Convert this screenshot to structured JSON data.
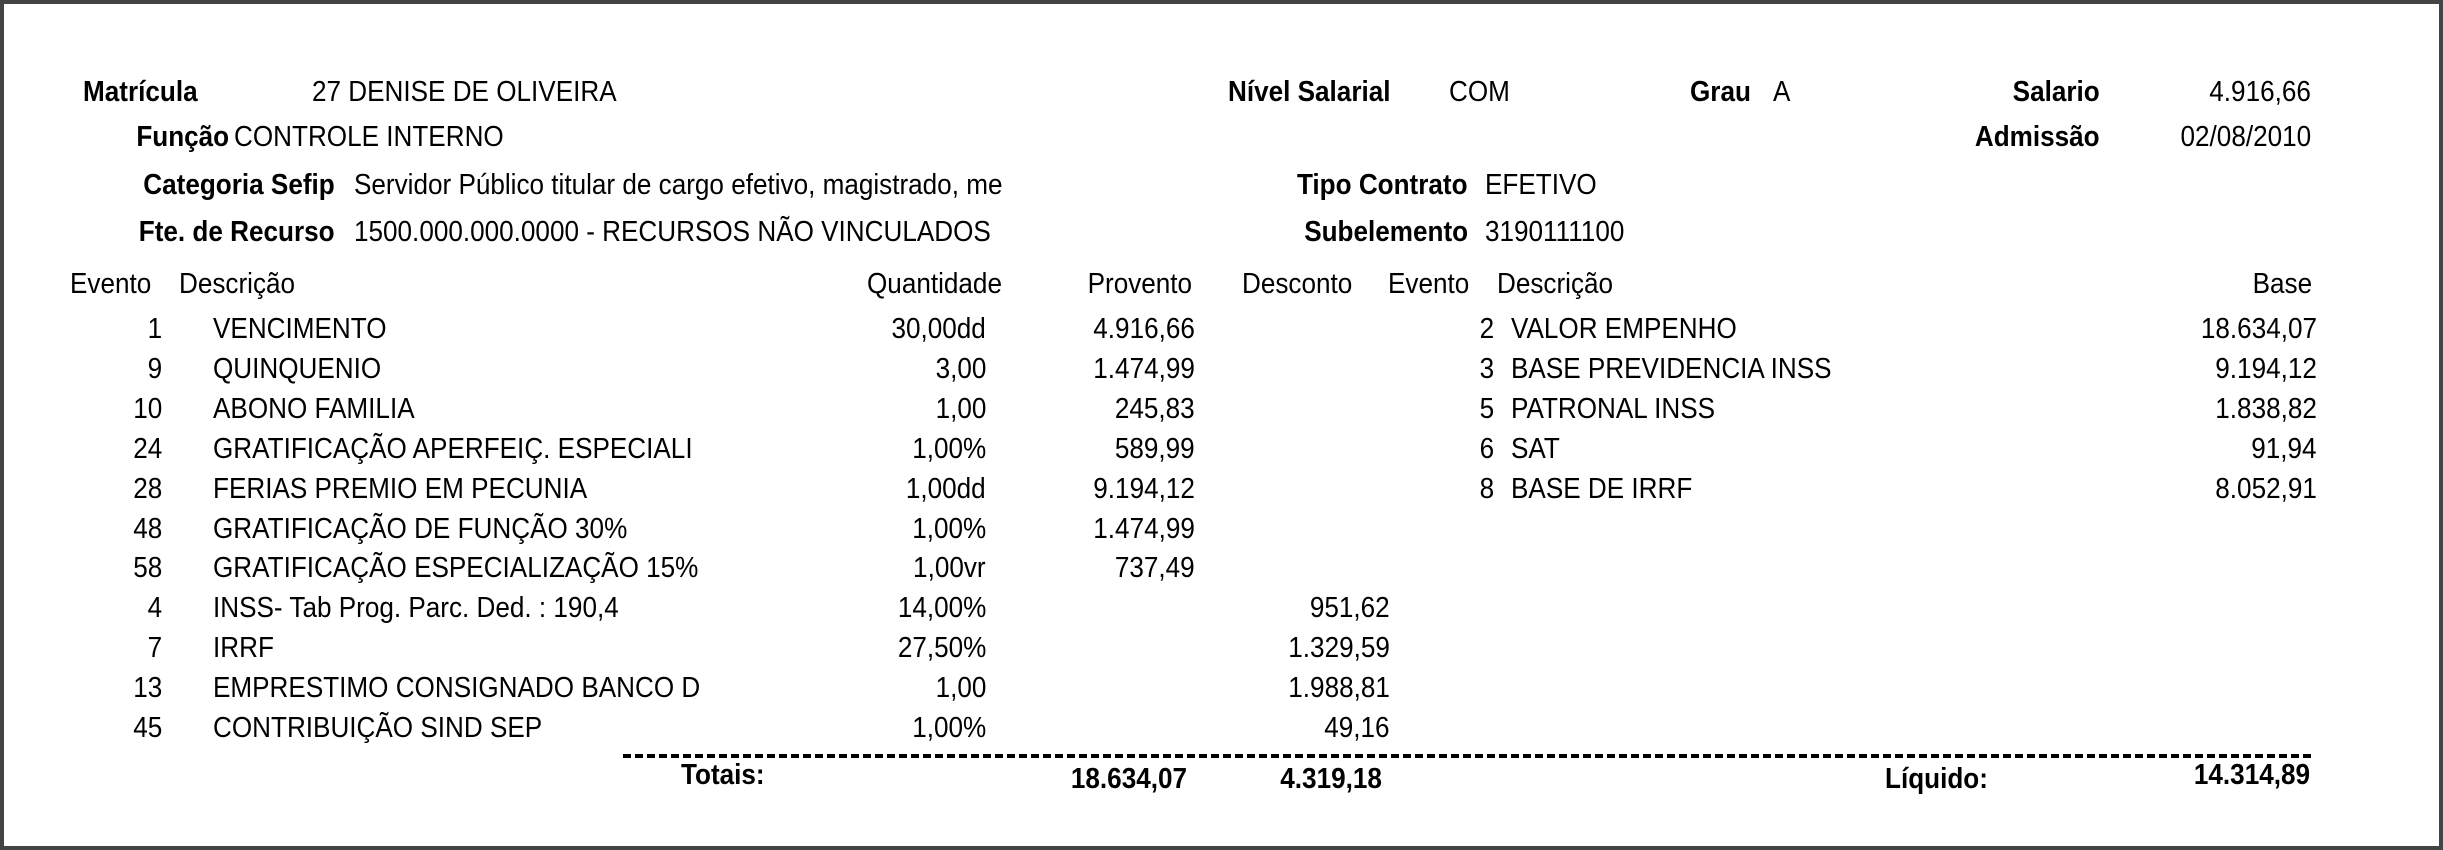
{
  "header": {
    "matricula_label": "Matrícula",
    "matricula_value": "27 DENISE DE OLIVEIRA",
    "funcao_label": "Função",
    "funcao_value": "CONTROLE INTERNO",
    "categoria_label": "Categoria Sefip",
    "categoria_value": "Servidor Público titular de cargo efetivo, magistrado, me",
    "fonte_label": "Fte. de Recurso",
    "fonte_value": "1500.000.000.0000 - RECURSOS NÃO VINCULADOS",
    "nivel_label": "Nível Salarial",
    "nivel_value": "COM",
    "grau_label": "Grau",
    "grau_value": "A",
    "salario_label": "Salario",
    "salario_value": "4.916,66",
    "admissao_label": "Admissão",
    "admissao_value": "02/08/2010",
    "tipo_label": "Tipo Contrato",
    "tipo_value": "EFETIVO",
    "subelemento_label": "Subelemento",
    "subelemento_value": "3190111100"
  },
  "columns": {
    "evento": "Evento",
    "descricao": "Descrição",
    "quantidade": "Quantidade",
    "provento": "Provento",
    "desconto": "Desconto",
    "evento2": "Evento",
    "descricao2": "Descrição",
    "base": "Base"
  },
  "events": [
    {
      "evento": "1",
      "descricao": "VENCIMENTO",
      "quantidade": "30,00dd",
      "provento": "4.916,66",
      "desconto": ""
    },
    {
      "evento": "9",
      "descricao": "QUINQUENIO",
      "quantidade": "3,00",
      "provento": "1.474,99",
      "desconto": ""
    },
    {
      "evento": "10",
      "descricao": "ABONO FAMILIA",
      "quantidade": "1,00",
      "provento": "245,83",
      "desconto": ""
    },
    {
      "evento": "24",
      "descricao": "GRATIFICAÇÃO APERFEIÇ. ESPECIALI",
      "quantidade": "1,00%",
      "provento": "589,99",
      "desconto": ""
    },
    {
      "evento": "28",
      "descricao": "FERIAS PREMIO EM PECUNIA",
      "quantidade": "1,00dd",
      "provento": "9.194,12",
      "desconto": ""
    },
    {
      "evento": "48",
      "descricao": "GRATIFICAÇÃO DE FUNÇÃO 30%",
      "quantidade": "1,00%",
      "provento": "1.474,99",
      "desconto": ""
    },
    {
      "evento": "58",
      "descricao": "GRATIFICAÇÃO ESPECIALIZAÇÃO 15%",
      "quantidade": "1,00vr",
      "provento": "737,49",
      "desconto": ""
    },
    {
      "evento": "4",
      "descricao": "INSS- Tab Prog. Parc. Ded. : 190,4",
      "quantidade": "14,00%",
      "provento": "",
      "desconto": "951,62"
    },
    {
      "evento": "7",
      "descricao": "IRRF",
      "quantidade": "27,50%",
      "provento": "",
      "desconto": "1.329,59"
    },
    {
      "evento": "13",
      "descricao": "EMPRESTIMO CONSIGNADO BANCO D",
      "quantidade": "1,00",
      "provento": "",
      "desconto": "1.988,81"
    },
    {
      "evento": "45",
      "descricao": "CONTRIBUIÇÃO SIND SEP",
      "quantidade": "1,00%",
      "provento": "",
      "desconto": "49,16"
    }
  ],
  "bases": [
    {
      "evento": "2",
      "descricao": "VALOR EMPENHO",
      "base": "18.634,07"
    },
    {
      "evento": "3",
      "descricao": "BASE PREVIDENCIA INSS",
      "base": "9.194,12"
    },
    {
      "evento": "5",
      "descricao": "PATRONAL INSS",
      "base": "1.838,82"
    },
    {
      "evento": "6",
      "descricao": "SAT",
      "base": "91,94"
    },
    {
      "evento": "8",
      "descricao": "BASE DE IRRF",
      "base": "8.052,91"
    }
  ],
  "totals": {
    "label": "Totais:",
    "proventos": "18.634,07",
    "descontos": "4.319,18",
    "liquido_label": "Líquido:",
    "liquido": "14.314,89"
  }
}
